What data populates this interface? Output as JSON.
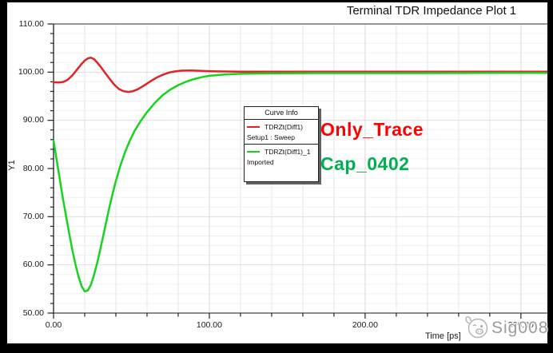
{
  "window": {
    "bg": "#000000",
    "panel_bg": "#ffffff"
  },
  "title": "Terminal TDR Impedance Plot 1",
  "axes": {
    "y": {
      "label": "Y1",
      "min": 50,
      "max": 110,
      "minor_step": 2,
      "tick_values": [
        110,
        100,
        90,
        80,
        70,
        60,
        50
      ],
      "tick_labels": [
        "110.00",
        "100.00",
        "90.00",
        "80.00",
        "70.00",
        "60.00",
        "50.00"
      ]
    },
    "x": {
      "label": "Time [ps]",
      "min": 0,
      "max": 317,
      "minor_step": 20,
      "tick_values": [
        0,
        100,
        200,
        300
      ],
      "tick_labels": [
        "0.00",
        "100.00",
        "200.00",
        "300.00"
      ]
    }
  },
  "legend": {
    "header": "Curve Info",
    "entries": [
      {
        "name": "TDRZt(Diff1)",
        "sub": "Setup1 : Sweep",
        "color": "#e32226"
      },
      {
        "name": "TDRZt(Diff1)_1",
        "sub": "Imported",
        "color": "#16d41e"
      }
    ]
  },
  "annotations": [
    {
      "text": "Only_Trace",
      "color": "#ff0000"
    },
    {
      "text": "Cap_0402",
      "color": "#00b050"
    }
  ],
  "watermark": {
    "text": "Sig008"
  },
  "chart_data": {
    "type": "line",
    "title": "Terminal TDR Impedance Plot 1",
    "xlabel": "Time [ps]",
    "ylabel": "Y1",
    "xlim": [
      0,
      317
    ],
    "ylim": [
      50,
      110
    ],
    "x_major_ticks": [
      0,
      100,
      200,
      300
    ],
    "y_major_ticks": [
      50,
      60,
      70,
      80,
      90,
      100,
      110
    ],
    "grid": true,
    "legend_position": "center-left",
    "series": [
      {
        "name": "TDRZt(Diff1), Setup1 : Sweep",
        "annotation": "Only_Trace",
        "color": "#e32226",
        "points": [
          [
            0,
            97.9
          ],
          [
            3,
            97.85
          ],
          [
            6,
            97.95
          ],
          [
            9,
            98.4
          ],
          [
            12,
            99.3
          ],
          [
            15,
            100.5
          ],
          [
            18,
            101.7
          ],
          [
            20,
            102.4
          ],
          [
            22,
            102.85
          ],
          [
            24,
            103.0
          ],
          [
            26,
            102.7
          ],
          [
            28,
            102.0
          ],
          [
            30,
            101.2
          ],
          [
            33,
            99.9
          ],
          [
            36,
            98.6
          ],
          [
            39,
            97.4
          ],
          [
            42,
            96.5
          ],
          [
            45,
            96.05
          ],
          [
            48,
            95.9
          ],
          [
            51,
            96.05
          ],
          [
            54,
            96.45
          ],
          [
            58,
            97.2
          ],
          [
            62,
            98.05
          ],
          [
            66,
            98.85
          ],
          [
            70,
            99.45
          ],
          [
            74,
            99.9
          ],
          [
            78,
            100.15
          ],
          [
            82,
            100.3
          ],
          [
            88,
            100.35
          ],
          [
            95,
            100.25
          ],
          [
            105,
            100.15
          ],
          [
            120,
            100.1
          ],
          [
            160,
            100.1
          ],
          [
            230,
            100.1
          ],
          [
            317,
            100.1
          ]
        ]
      },
      {
        "name": "TDRZt(Diff1)_1, Imported",
        "annotation": "Cap_0402",
        "color": "#16d41e",
        "points": [
          [
            0,
            85.8
          ],
          [
            2,
            81.8
          ],
          [
            4,
            77.8
          ],
          [
            6,
            73.8
          ],
          [
            8,
            70.2
          ],
          [
            10,
            66.6
          ],
          [
            12,
            63.2
          ],
          [
            14,
            60.2
          ],
          [
            16,
            57.6
          ],
          [
            18,
            55.6
          ],
          [
            20,
            54.5
          ],
          [
            22,
            54.7
          ],
          [
            24,
            55.9
          ],
          [
            26,
            57.9
          ],
          [
            28,
            60.4
          ],
          [
            30,
            63.2
          ],
          [
            32,
            66.2
          ],
          [
            34,
            69.2
          ],
          [
            36,
            72.2
          ],
          [
            38,
            74.9
          ],
          [
            40,
            77.4
          ],
          [
            43,
            80.7
          ],
          [
            46,
            83.5
          ],
          [
            49,
            85.8
          ],
          [
            52,
            87.8
          ],
          [
            56,
            89.9
          ],
          [
            60,
            91.7
          ],
          [
            65,
            93.6
          ],
          [
            70,
            95.2
          ],
          [
            75,
            96.4
          ],
          [
            80,
            97.3
          ],
          [
            85,
            98.0
          ],
          [
            90,
            98.55
          ],
          [
            95,
            98.95
          ],
          [
            100,
            99.25
          ],
          [
            110,
            99.5
          ],
          [
            120,
            99.65
          ],
          [
            140,
            99.75
          ],
          [
            170,
            99.8
          ],
          [
            230,
            99.8
          ],
          [
            317,
            99.85
          ]
        ]
      }
    ]
  }
}
